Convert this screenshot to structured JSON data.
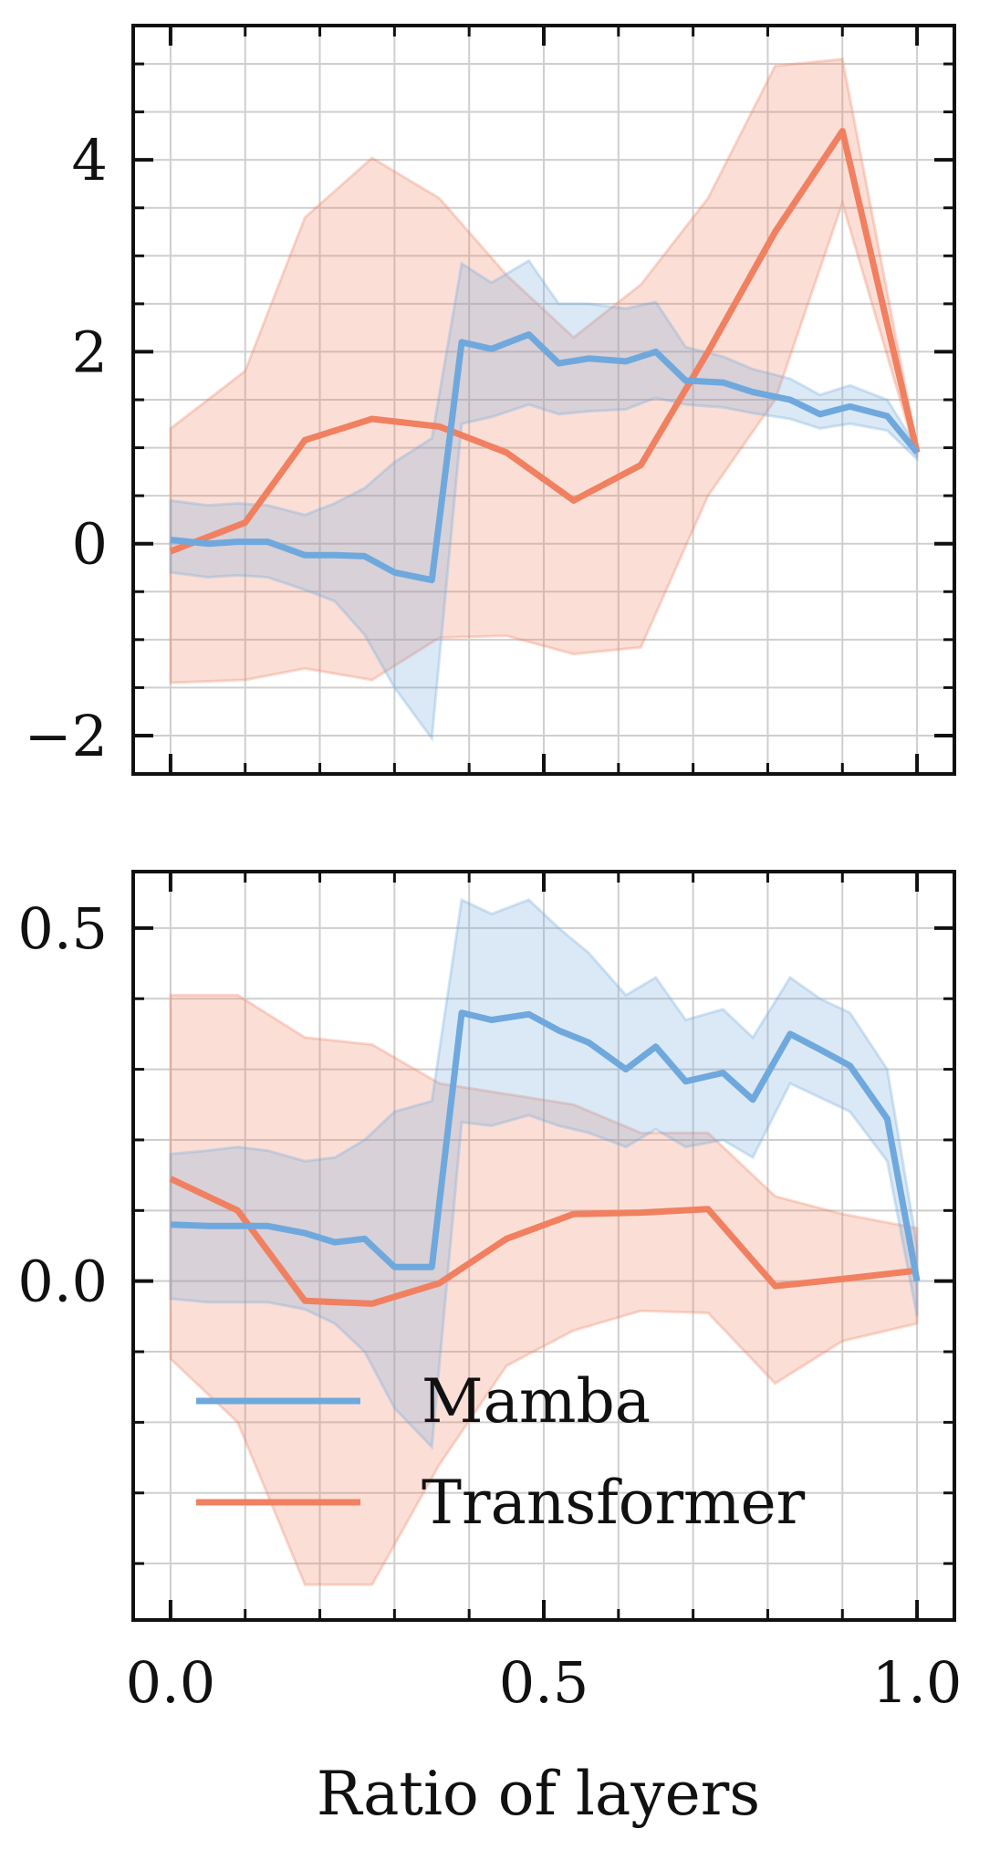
{
  "colors": {
    "mamba": "#6fa8dc",
    "transformer": "#f08060",
    "mamba_band": "#a9cbee",
    "transformer_band": "#f6b8a2",
    "grid": "#cfcfcf",
    "axis": "#111111"
  },
  "chart_data": [
    {
      "type": "line",
      "xlim": [
        -0.05,
        1.05
      ],
      "ylim": [
        -2.4,
        5.4
      ],
      "xticks": [
        0.0,
        0.5,
        1.0
      ],
      "xtick_labels": [
        "",
        "",
        ""
      ],
      "yticks": [
        -2,
        0,
        2,
        4
      ],
      "ytick_labels": [
        "−2",
        "0",
        "2",
        "4"
      ],
      "grid": true,
      "series": [
        {
          "name": "Transformer",
          "color_key": "transformer",
          "x": [
            0.0,
            0.1,
            0.18,
            0.27,
            0.36,
            0.45,
            0.54,
            0.63,
            0.72,
            0.81,
            0.9,
            1.0
          ],
          "y": [
            -0.08,
            0.22,
            1.08,
            1.3,
            1.22,
            0.95,
            0.45,
            0.82,
            2.0,
            3.25,
            4.3,
            0.95
          ],
          "upper": [
            1.2,
            1.8,
            3.4,
            4.02,
            3.6,
            2.8,
            2.15,
            2.7,
            3.6,
            4.98,
            5.05,
            1.0
          ],
          "lower": [
            -1.45,
            -1.42,
            -1.3,
            -1.42,
            -0.98,
            -0.96,
            -1.15,
            -1.08,
            0.5,
            1.5,
            3.55,
            0.9
          ]
        },
        {
          "name": "Mamba",
          "color_key": "mamba",
          "x": [
            0.0,
            0.05,
            0.09,
            0.13,
            0.18,
            0.22,
            0.26,
            0.3,
            0.35,
            0.39,
            0.43,
            0.48,
            0.52,
            0.56,
            0.61,
            0.65,
            0.69,
            0.74,
            0.78,
            0.83,
            0.87,
            0.91,
            0.96,
            1.0
          ],
          "y": [
            0.04,
            0.0,
            0.02,
            0.02,
            -0.12,
            -0.12,
            -0.13,
            -0.3,
            -0.38,
            2.1,
            2.03,
            2.18,
            1.88,
            1.93,
            1.9,
            2.0,
            1.7,
            1.68,
            1.58,
            1.5,
            1.35,
            1.43,
            1.33,
            0.95
          ],
          "upper": [
            0.45,
            0.4,
            0.42,
            0.4,
            0.3,
            0.42,
            0.58,
            0.85,
            1.1,
            2.92,
            2.72,
            2.95,
            2.5,
            2.5,
            2.45,
            2.52,
            2.05,
            1.95,
            1.82,
            1.72,
            1.55,
            1.65,
            1.5,
            1.0
          ],
          "lower": [
            -0.3,
            -0.35,
            -0.33,
            -0.35,
            -0.48,
            -0.6,
            -0.95,
            -1.5,
            -2.03,
            1.25,
            1.32,
            1.45,
            1.35,
            1.38,
            1.4,
            1.52,
            1.45,
            1.42,
            1.36,
            1.3,
            1.2,
            1.25,
            1.18,
            0.88
          ]
        }
      ]
    },
    {
      "type": "line",
      "xlim": [
        -0.05,
        1.05
      ],
      "ylim": [
        -0.48,
        0.58
      ],
      "xticks": [
        0.0,
        0.5,
        1.0
      ],
      "xtick_labels": [
        "0.0",
        "0.5",
        "1.0"
      ],
      "yticks": [
        0.0,
        0.5
      ],
      "ytick_labels": [
        "0.0",
        "0.5"
      ],
      "minor_yticks": [
        -0.4,
        -0.3,
        -0.2,
        -0.1,
        0.1,
        0.2,
        0.3,
        0.4
      ],
      "xlabel": "Ratio of layers",
      "grid": true,
      "legend": "lower-left",
      "legend_entries": [
        "Mamba",
        "Transformer"
      ],
      "series": [
        {
          "name": "Transformer",
          "color_key": "transformer",
          "x": [
            0.0,
            0.09,
            0.18,
            0.27,
            0.36,
            0.45,
            0.54,
            0.63,
            0.72,
            0.81,
            0.9,
            1.0
          ],
          "y": [
            0.145,
            0.1,
            -0.028,
            -0.032,
            -0.003,
            0.06,
            0.095,
            0.097,
            0.102,
            -0.007,
            0.003,
            0.015
          ],
          "upper": [
            0.405,
            0.405,
            0.345,
            0.335,
            0.28,
            0.265,
            0.25,
            0.21,
            0.21,
            0.12,
            0.095,
            0.075
          ],
          "lower": [
            -0.11,
            -0.2,
            -0.43,
            -0.43,
            -0.26,
            -0.12,
            -0.07,
            -0.042,
            -0.045,
            -0.145,
            -0.085,
            -0.06
          ]
        },
        {
          "name": "Mamba",
          "color_key": "mamba",
          "x": [
            0.0,
            0.05,
            0.09,
            0.13,
            0.18,
            0.22,
            0.26,
            0.3,
            0.35,
            0.39,
            0.43,
            0.48,
            0.52,
            0.56,
            0.61,
            0.65,
            0.69,
            0.74,
            0.78,
            0.83,
            0.87,
            0.91,
            0.96,
            1.0
          ],
          "y": [
            0.08,
            0.078,
            0.078,
            0.078,
            0.068,
            0.055,
            0.06,
            0.02,
            0.02,
            0.38,
            0.37,
            0.378,
            0.355,
            0.338,
            0.3,
            0.332,
            0.283,
            0.295,
            0.257,
            0.35,
            0.328,
            0.305,
            0.23,
            0.0
          ],
          "upper": [
            0.18,
            0.185,
            0.19,
            0.185,
            0.17,
            0.175,
            0.2,
            0.24,
            0.255,
            0.54,
            0.52,
            0.54,
            0.5,
            0.465,
            0.405,
            0.43,
            0.37,
            0.385,
            0.345,
            0.43,
            0.4,
            0.38,
            0.3,
            0.05
          ],
          "lower": [
            -0.025,
            -0.03,
            -0.03,
            -0.03,
            -0.04,
            -0.06,
            -0.1,
            -0.18,
            -0.235,
            0.225,
            0.22,
            0.235,
            0.22,
            0.21,
            0.19,
            0.215,
            0.19,
            0.2,
            0.175,
            0.28,
            0.26,
            0.24,
            0.17,
            -0.05
          ]
        }
      ]
    }
  ]
}
